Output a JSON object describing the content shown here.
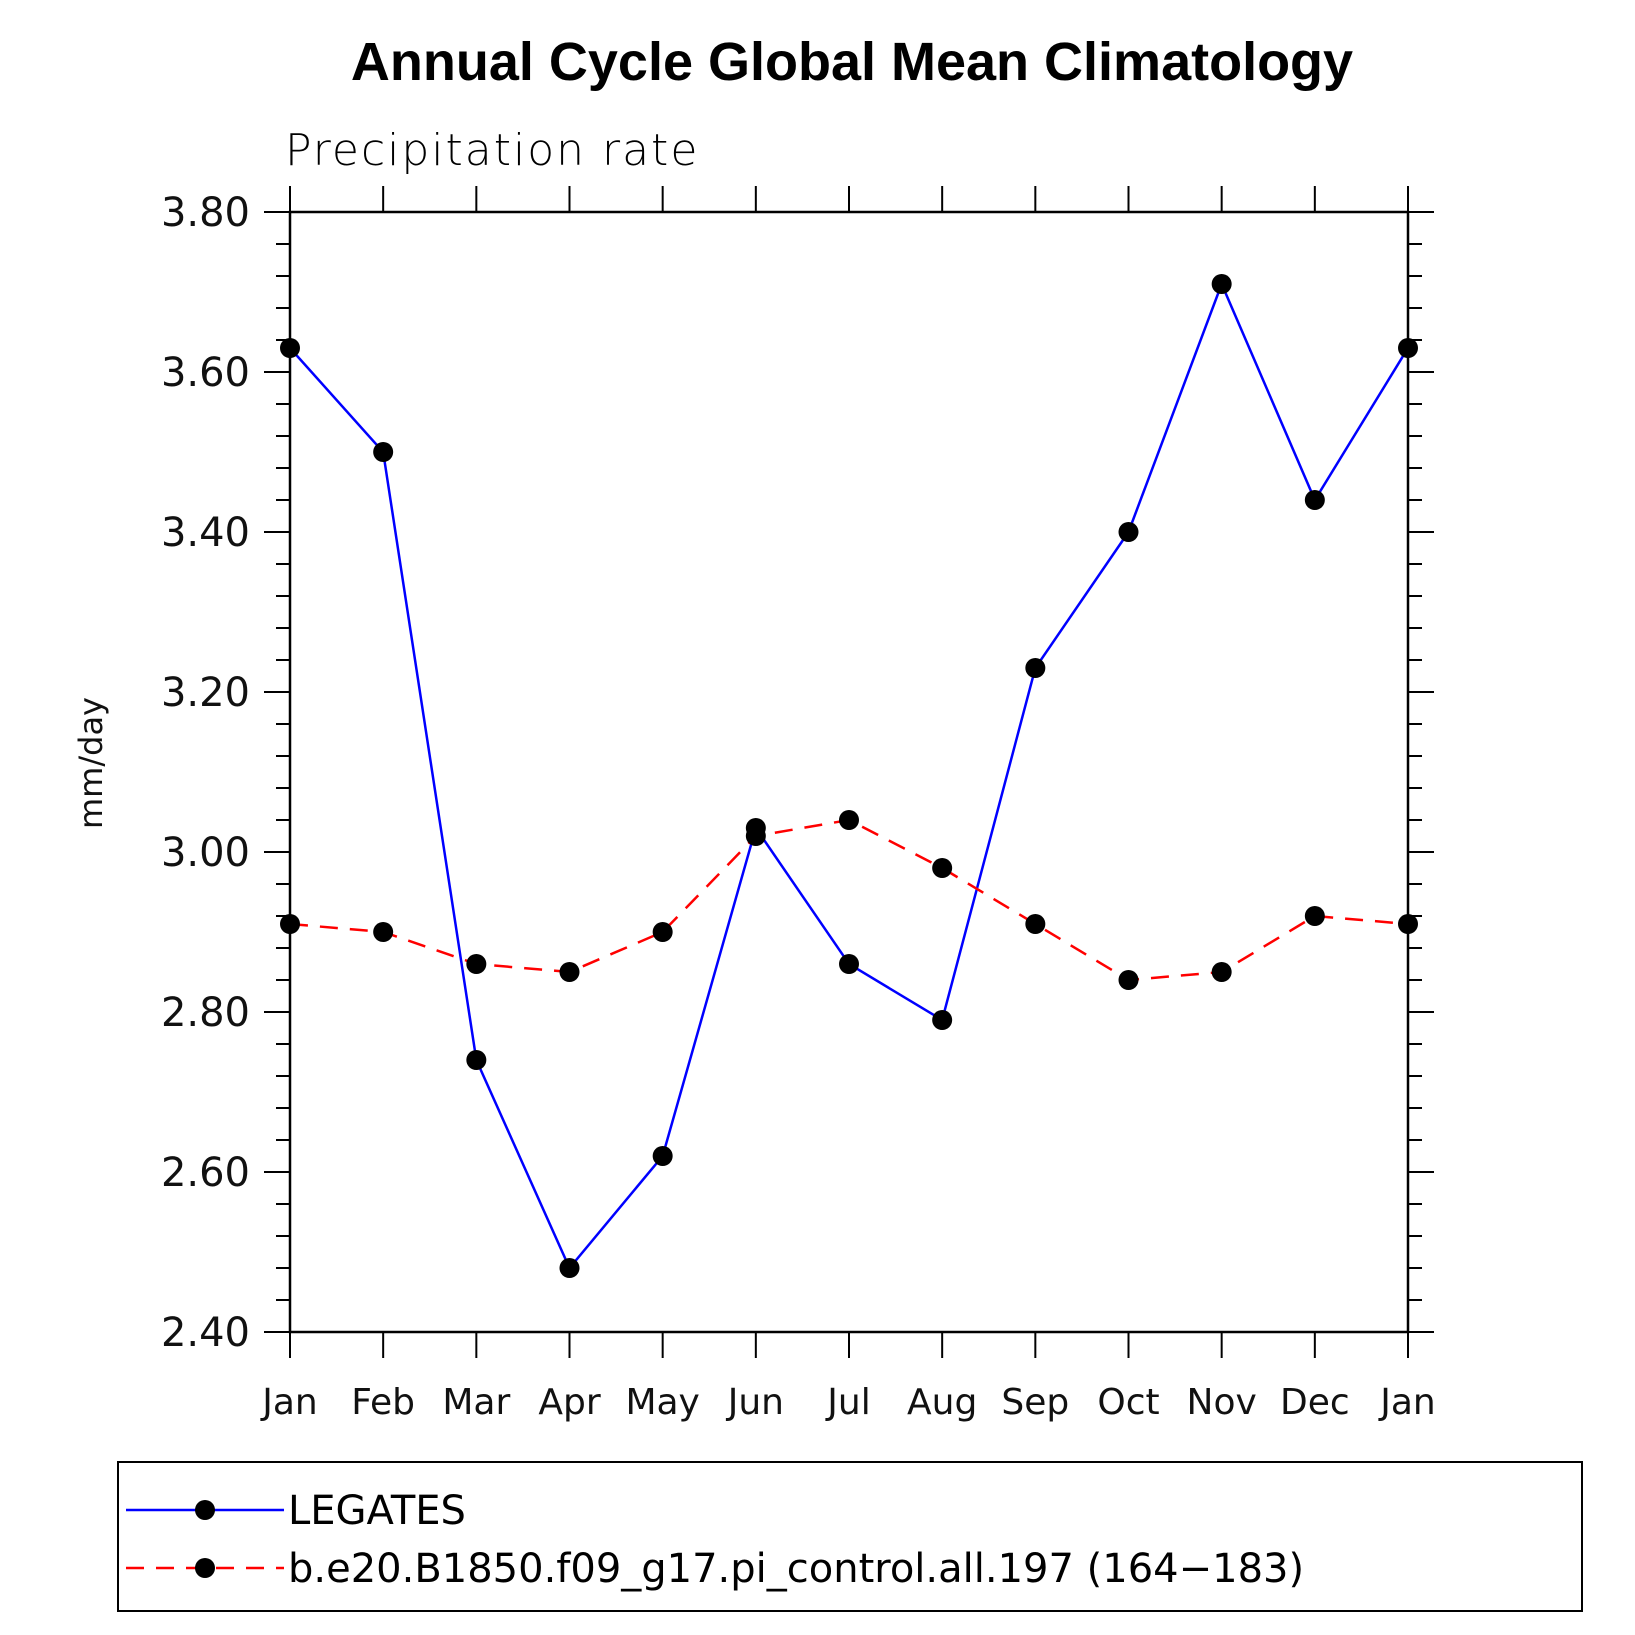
{
  "chart_data": {
    "type": "line",
    "title": "Annual Cycle Global Mean Climatology",
    "subtitle": "Precipitation rate",
    "xlabel": "",
    "ylabel": "mm/day",
    "categories": [
      "Jan",
      "Feb",
      "Mar",
      "Apr",
      "May",
      "Jun",
      "Jul",
      "Aug",
      "Sep",
      "Oct",
      "Nov",
      "Dec",
      "Jan"
    ],
    "ylim": [
      2.4,
      3.8
    ],
    "yticks": [
      "2.40",
      "2.60",
      "2.80",
      "3.00",
      "3.20",
      "3.40",
      "3.60",
      "3.80"
    ],
    "grid": false,
    "legend_position": "bottom",
    "series": [
      {
        "name": "LEGATES",
        "color": "#0000ff",
        "line_style": "solid",
        "marker": "filled-circle",
        "values": [
          3.63,
          3.5,
          2.74,
          2.48,
          2.62,
          3.03,
          2.86,
          2.79,
          3.23,
          3.4,
          3.71,
          3.44,
          3.63
        ]
      },
      {
        "name": "b.e20.B1850.f09_g17.pi_control.all.197 (164−183)",
        "color": "#ff0000",
        "line_style": "dashed",
        "marker": "filled-circle",
        "values": [
          2.91,
          2.9,
          2.86,
          2.85,
          2.9,
          3.02,
          3.04,
          2.98,
          2.91,
          2.84,
          2.85,
          2.92,
          2.91
        ]
      }
    ]
  }
}
